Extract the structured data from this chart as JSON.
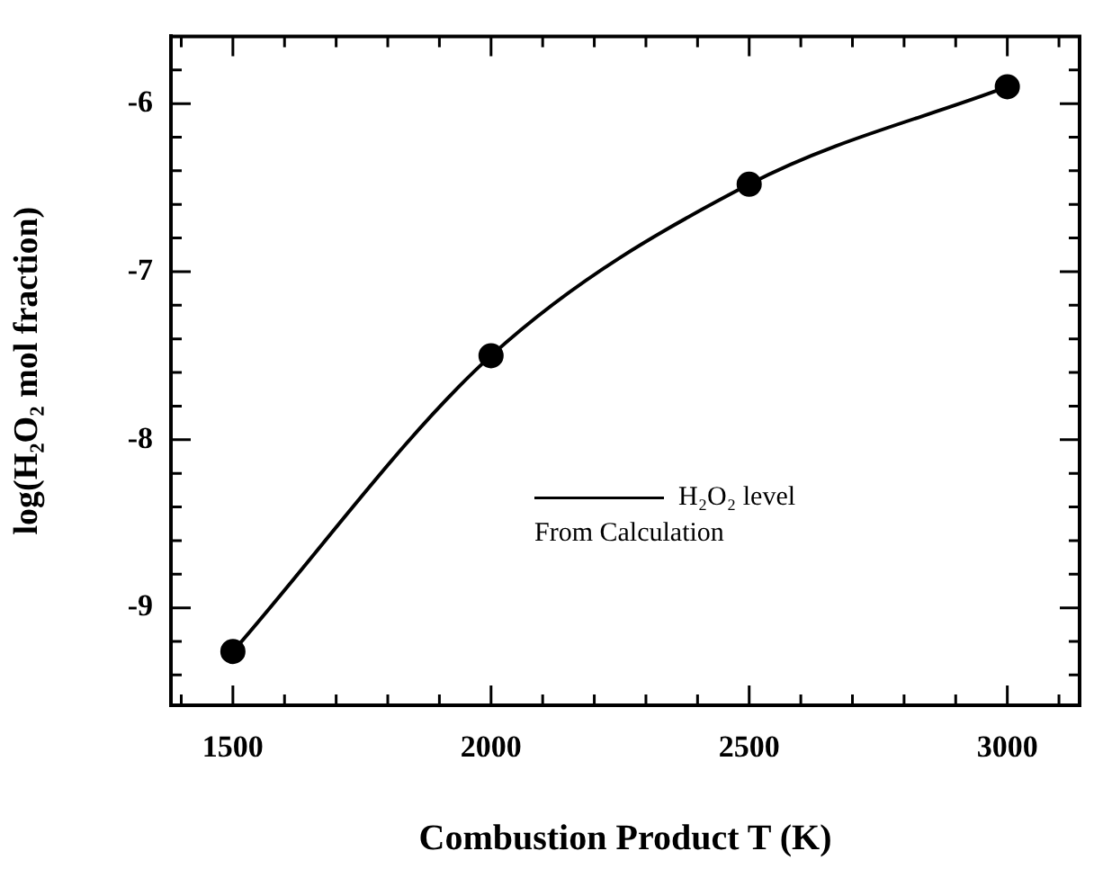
{
  "chart_data": {
    "type": "line",
    "xlabel": "Combustion Product T (K)",
    "ylabel": "log(H₂O₂ mol fraction)",
    "x": [
      1500,
      2000,
      2500,
      3000
    ],
    "series": [
      {
        "name": "H₂O₂ level",
        "color": "#000000",
        "values": [
          -9.26,
          -7.5,
          -6.48,
          -5.9
        ]
      }
    ],
    "xlim": [
      1380,
      3140
    ],
    "ylim": [
      -9.58,
      -5.6
    ],
    "xticks": [
      {
        "value": 1400,
        "label": null
      },
      1500,
      {
        "value": 1600,
        "label": null
      },
      {
        "value": 1700,
        "label": null
      },
      {
        "value": 1800,
        "label": null
      },
      {
        "value": 1900,
        "label": null
      },
      2000,
      {
        "value": 2100,
        "label": null
      },
      {
        "value": 2200,
        "label": null
      },
      {
        "value": 2300,
        "label": null
      },
      {
        "value": 2400,
        "label": null
      },
      2500,
      {
        "value": 2600,
        "label": null
      },
      {
        "value": 2700,
        "label": null
      },
      {
        "value": 2800,
        "label": null
      },
      {
        "value": 2900,
        "label": null
      },
      3000,
      {
        "value": 3100,
        "label": null
      }
    ],
    "yticks": [
      {
        "value": -9.4,
        "label": null
      },
      {
        "value": -9.2,
        "label": null
      },
      -9,
      {
        "value": -8.8,
        "label": null
      },
      {
        "value": -8.6,
        "label": null
      },
      {
        "value": -8.4,
        "label": null
      },
      {
        "value": -8.2,
        "label": null
      },
      -8,
      {
        "value": -7.8,
        "label": null
      },
      {
        "value": -7.6,
        "label": null
      },
      {
        "value": -7.4,
        "label": null
      },
      {
        "value": -7.2,
        "label": null
      },
      -7,
      {
        "value": -6.8,
        "label": null
      },
      {
        "value": -6.6,
        "label": null
      },
      {
        "value": -6.4,
        "label": null
      },
      {
        "value": -6.2,
        "label": null
      },
      -6,
      {
        "value": -5.8,
        "label": null
      }
    ],
    "annotations": [
      "From Calculation"
    ],
    "grid": false,
    "legend": "center right",
    "marker": "circle",
    "line_style": "solid"
  }
}
